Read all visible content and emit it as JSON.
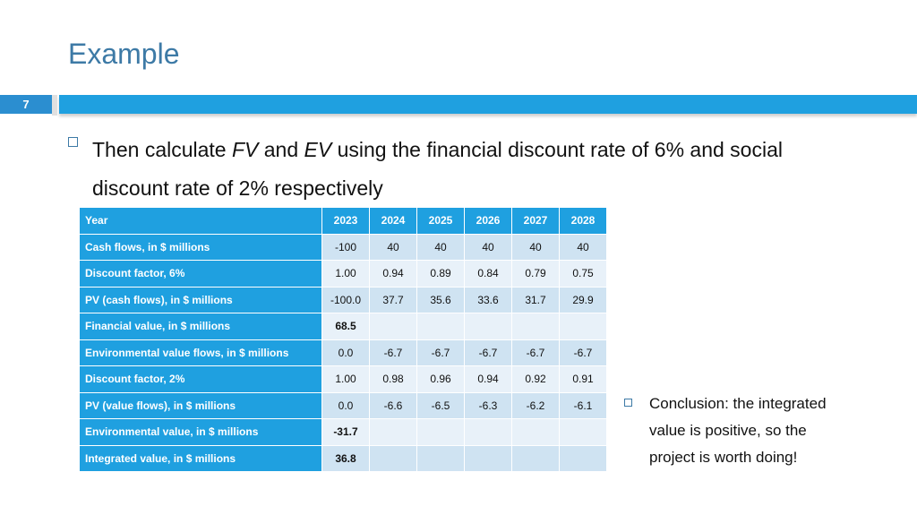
{
  "slide": {
    "title": "Example",
    "number": "7"
  },
  "main_bullet": {
    "prefix": "Then calculate ",
    "fv": "FV",
    "middle": " and ",
    "ev": "EV",
    "suffix": " using the financial discount rate of 6% and social discount rate of 2% respectively"
  },
  "table": {
    "header": [
      "Year",
      "2023",
      "2024",
      "2025",
      "2026",
      "2027",
      "2028"
    ],
    "rows": [
      {
        "label": "Cash flows, in $ millions",
        "cells": [
          "-100",
          "40",
          "40",
          "40",
          "40",
          "40"
        ]
      },
      {
        "label": "Discount factor, 6%",
        "cells": [
          "1.00",
          "0.94",
          "0.89",
          "0.84",
          "0.79",
          "0.75"
        ]
      },
      {
        "label": "PV (cash flows), in $ millions",
        "cells": [
          "-100.0",
          "37.7",
          "35.6",
          "33.6",
          "31.7",
          "29.9"
        ]
      },
      {
        "label": "Financial value, in $ millions",
        "cells": [
          "68.5",
          "",
          "",
          "",
          "",
          ""
        ]
      },
      {
        "label": "Environmental value flows, in $ millions",
        "cells": [
          "0.0",
          "-6.7",
          "-6.7",
          "-6.7",
          "-6.7",
          "-6.7"
        ]
      },
      {
        "label": "Discount factor, 2%",
        "cells": [
          "1.00",
          "0.98",
          "0.96",
          "0.94",
          "0.92",
          "0.91"
        ]
      },
      {
        "label": "PV (value flows), in $ millions",
        "cells": [
          "0.0",
          "-6.6",
          "-6.5",
          "-6.3",
          "-6.2",
          "-6.1"
        ]
      },
      {
        "label": "Environmental value, in $ millions",
        "cells": [
          "-31.7",
          "",
          "",
          "",
          "",
          ""
        ]
      },
      {
        "label": "Integrated value, in $ millions",
        "cells": [
          "36.8",
          "",
          "",
          "",
          "",
          ""
        ]
      }
    ]
  },
  "conclusion": {
    "text": "Conclusion: the integrated value is positive, so the project is worth doing!"
  },
  "colors": {
    "title": "#3d7aa6",
    "band": "#1fa0e0",
    "slide_number_box": "#2b8ed0",
    "row_dark": "#cfe3f2",
    "row_light": "#e8f1f9"
  }
}
